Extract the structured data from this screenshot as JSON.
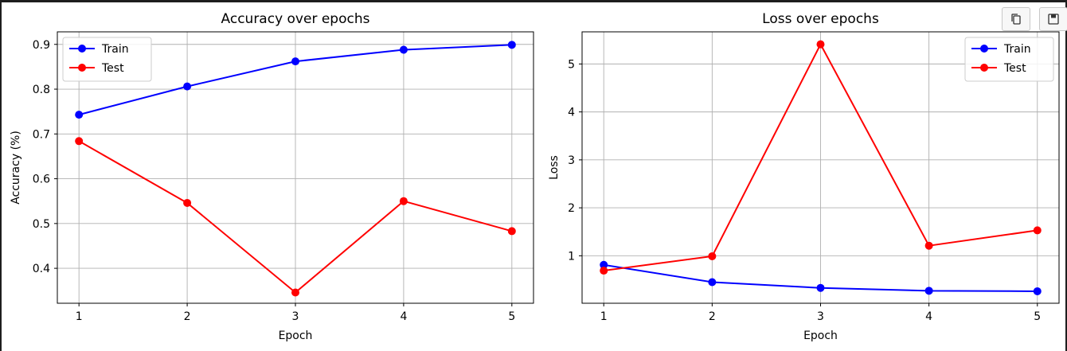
{
  "chart_data": [
    {
      "type": "line",
      "title": "Accuracy over epochs",
      "xlabel": "Epoch",
      "ylabel": "Accuracy (%)",
      "x": [
        1,
        2,
        3,
        4,
        5
      ],
      "xticks": [
        "1",
        "2",
        "3",
        "4",
        "5"
      ],
      "yticks": [
        "0.4",
        "0.5",
        "0.6",
        "0.7",
        "0.8",
        "0.9"
      ],
      "ytick_values": [
        0.4,
        0.5,
        0.6,
        0.7,
        0.8,
        0.9
      ],
      "xlim": [
        0.8,
        5.2
      ],
      "ylim": [
        0.322,
        0.928
      ],
      "grid": true,
      "legend": "upper-left",
      "series": [
        {
          "name": "Train",
          "color": "#0000ff",
          "values": [
            0.743,
            0.806,
            0.862,
            0.888,
            0.899
          ]
        },
        {
          "name": "Test",
          "color": "#ff0000",
          "values": [
            0.684,
            0.546,
            0.346,
            0.55,
            0.483
          ]
        }
      ]
    },
    {
      "type": "line",
      "title": "Loss over epochs",
      "xlabel": "Epoch",
      "ylabel": "Loss",
      "x": [
        1,
        2,
        3,
        4,
        5
      ],
      "xticks": [
        "1",
        "2",
        "3",
        "4",
        "5"
      ],
      "yticks": [
        "1",
        "2",
        "3",
        "4",
        "5"
      ],
      "ytick_values": [
        1,
        2,
        3,
        4,
        5
      ],
      "xlim": [
        0.8,
        5.2
      ],
      "ylim": [
        0.01,
        5.67
      ],
      "grid": true,
      "legend": "upper-right",
      "series": [
        {
          "name": "Train",
          "color": "#0000ff",
          "values": [
            0.81,
            0.45,
            0.33,
            0.27,
            0.26
          ]
        },
        {
          "name": "Test",
          "color": "#ff0000",
          "values": [
            0.69,
            0.99,
            5.41,
            1.21,
            1.53
          ]
        }
      ]
    }
  ],
  "toolbar": {
    "copy_icon": "copy-icon",
    "save_icon": "save-icon"
  }
}
